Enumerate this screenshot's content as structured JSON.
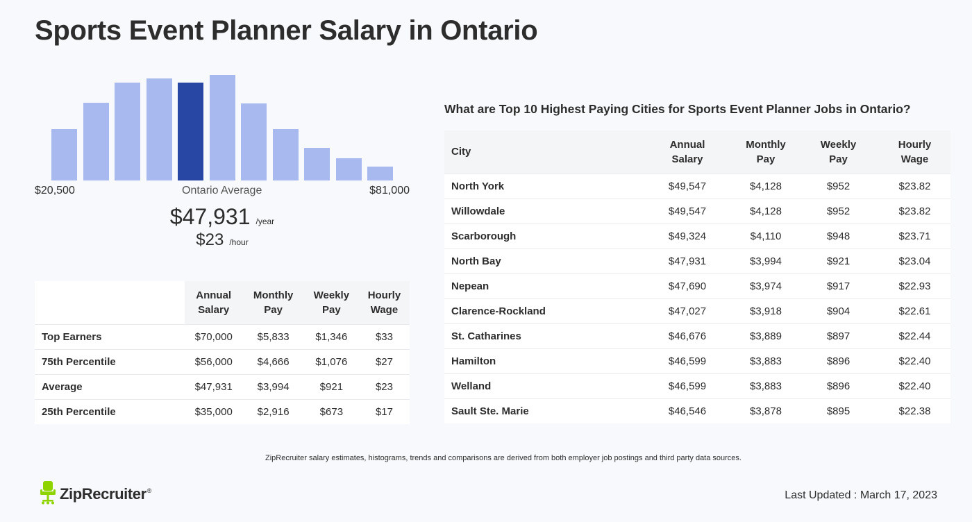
{
  "page": {
    "title": "Sports Event Planner Salary in Ontario"
  },
  "histogram": {
    "range_min": "$20,500",
    "range_mid": "Ontario Average",
    "range_max": "$81,000",
    "bar_levels": [
      0.49,
      0.74,
      0.93,
      0.97,
      0.93,
      1.0,
      0.73,
      0.49,
      0.31,
      0.21,
      0.13
    ],
    "highlight_index": 4,
    "bar_color": "#a8b9f0",
    "highlight_color": "#2847a5"
  },
  "average": {
    "annual": "$47,931",
    "annual_unit": "/year",
    "hourly": "$23",
    "hourly_unit": "/hour"
  },
  "percentile_table": {
    "headers": {
      "annual": [
        "Annual",
        "Salary"
      ],
      "monthly": [
        "Monthly",
        "Pay"
      ],
      "weekly": [
        "Weekly",
        "Pay"
      ],
      "hourly": [
        "Hourly",
        "Wage"
      ]
    },
    "rows": [
      {
        "label": "Top Earners",
        "annual": "$70,000",
        "monthly": "$5,833",
        "weekly": "$1,346",
        "hourly": "$33"
      },
      {
        "label": "75th Percentile",
        "annual": "$56,000",
        "monthly": "$4,666",
        "weekly": "$1,076",
        "hourly": "$27"
      },
      {
        "label": "Average",
        "annual": "$47,931",
        "monthly": "$3,994",
        "weekly": "$921",
        "hourly": "$23"
      },
      {
        "label": "25th Percentile",
        "annual": "$35,000",
        "monthly": "$2,916",
        "weekly": "$673",
        "hourly": "$17"
      }
    ]
  },
  "cities": {
    "title": "What are Top 10 Highest Paying Cities for Sports Event Planner Jobs in Ontario?",
    "headers": {
      "city": "City",
      "annual": [
        "Annual",
        "Salary"
      ],
      "monthly": [
        "Monthly",
        "Pay"
      ],
      "weekly": [
        "Weekly",
        "Pay"
      ],
      "hourly": [
        "Hourly",
        "Wage"
      ]
    },
    "rows": [
      {
        "city": "North York",
        "annual": "$49,547",
        "monthly": "$4,128",
        "weekly": "$952",
        "hourly": "$23.82"
      },
      {
        "city": "Willowdale",
        "annual": "$49,547",
        "monthly": "$4,128",
        "weekly": "$952",
        "hourly": "$23.82"
      },
      {
        "city": "Scarborough",
        "annual": "$49,324",
        "monthly": "$4,110",
        "weekly": "$948",
        "hourly": "$23.71"
      },
      {
        "city": "North Bay",
        "annual": "$47,931",
        "monthly": "$3,994",
        "weekly": "$921",
        "hourly": "$23.04"
      },
      {
        "city": "Nepean",
        "annual": "$47,690",
        "monthly": "$3,974",
        "weekly": "$917",
        "hourly": "$22.93"
      },
      {
        "city": "Clarence-Rockland",
        "annual": "$47,027",
        "monthly": "$3,918",
        "weekly": "$904",
        "hourly": "$22.61"
      },
      {
        "city": "St. Catharines",
        "annual": "$46,676",
        "monthly": "$3,889",
        "weekly": "$897",
        "hourly": "$22.44"
      },
      {
        "city": "Hamilton",
        "annual": "$46,599",
        "monthly": "$3,883",
        "weekly": "$896",
        "hourly": "$22.40"
      },
      {
        "city": "Welland",
        "annual": "$46,599",
        "monthly": "$3,883",
        "weekly": "$896",
        "hourly": "$22.40"
      },
      {
        "city": "Sault Ste. Marie",
        "annual": "$46,546",
        "monthly": "$3,878",
        "weekly": "$895",
        "hourly": "$22.38"
      }
    ]
  },
  "footer": {
    "note": "ZipRecruiter salary estimates, histograms, trends and comparisons are derived from both employer job postings and third party data sources.",
    "logo_text": "ZipRecruiter",
    "logo_mark": "®",
    "logo_color": "#8fd400",
    "last_updated": "Last Updated : March 17, 2023"
  }
}
